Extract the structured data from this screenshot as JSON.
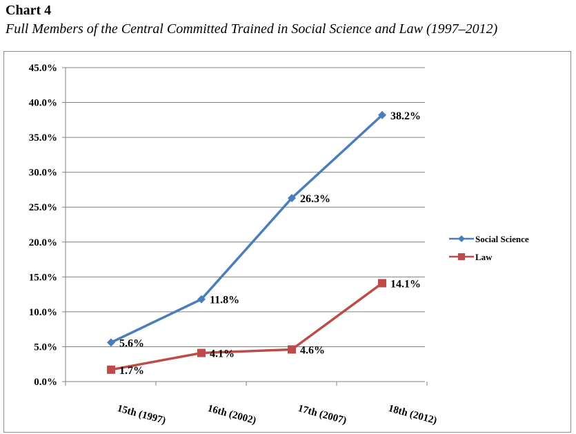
{
  "page": {
    "heading": "Chart 4",
    "subtitle": "Full Members of the Central Committed Trained in Social Science and Law (1997–2012)"
  },
  "colors": {
    "social_science": "#4a7ebb",
    "law": "#be4b48",
    "gridline": "#7f7f7f",
    "axis": "#808080"
  },
  "chart_data": {
    "type": "line",
    "title": "Chart 4",
    "subtitle": "Full Members of the Central Committed Trained in Social Science and Law (1997–2012)",
    "categories": [
      "15th (1997)",
      "16th (2002)",
      "17th (2007)",
      "18th (2012)"
    ],
    "series": [
      {
        "name": "Social Science",
        "values": [
          5.6,
          11.8,
          26.3,
          38.2
        ],
        "labels": [
          "5.6%",
          "11.8%",
          "26.3%",
          "38.2%"
        ],
        "marker": "diamond",
        "color": "#4a7ebb"
      },
      {
        "name": "Law",
        "values": [
          1.7,
          4.1,
          4.6,
          14.1
        ],
        "labels": [
          "1.7%",
          "4.1%",
          "4.6%",
          "14.1%"
        ],
        "marker": "square",
        "color": "#be4b48"
      }
    ],
    "ylim": [
      0,
      45
    ],
    "yticks": [
      "0.0%",
      "5.0%",
      "10.0%",
      "15.0%",
      "20.0%",
      "25.0%",
      "30.0%",
      "35.0%",
      "40.0%",
      "45.0%"
    ],
    "ytick_values": [
      0,
      5,
      10,
      15,
      20,
      25,
      30,
      35,
      40,
      45
    ],
    "grid": true,
    "legend": "right",
    "xlabel": "",
    "ylabel": ""
  }
}
